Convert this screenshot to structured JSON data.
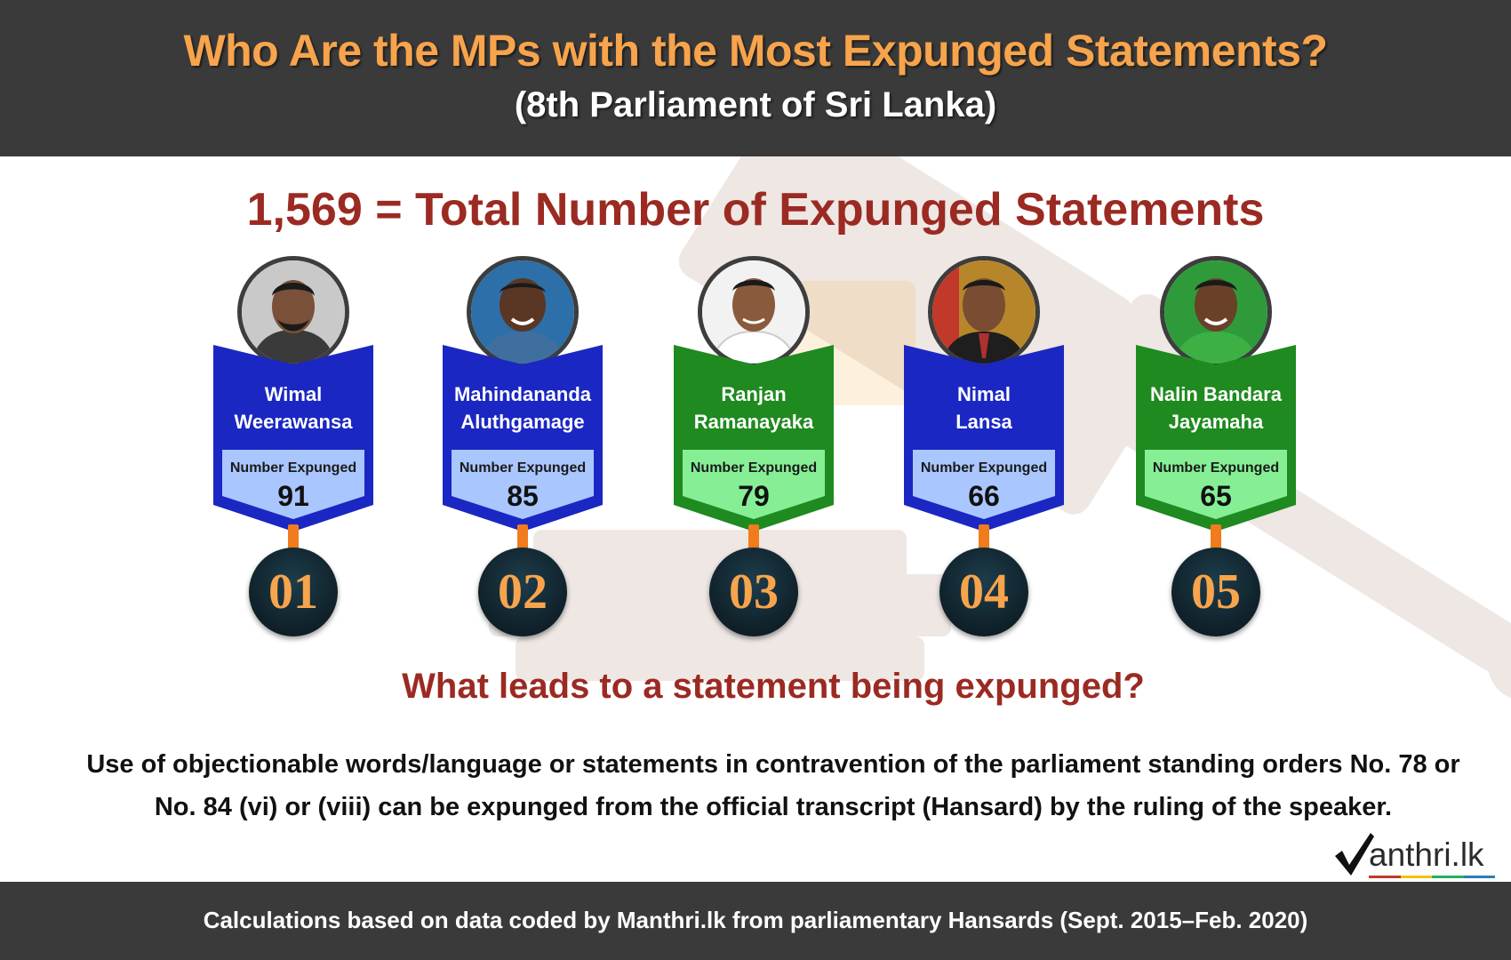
{
  "header": {
    "title": "Who Are the MPs with the Most Expunged Statements?",
    "subtitle": "(8th Parliament of Sri Lanka)"
  },
  "total_line": "1,569 = Total Number of Expunged Statements",
  "total_value": 1569,
  "mps": [
    {
      "rank": "01",
      "name_line1": "Wimal",
      "name_line2": "Weerawansa",
      "label": "Number Expunged",
      "value": "91",
      "ribbon_color": "#1b27c2",
      "box_color": "#a9c6ff"
    },
    {
      "rank": "02",
      "name_line1": "Mahindananda",
      "name_line2": "Aluthgamage",
      "label": "Number Expunged",
      "value": "85",
      "ribbon_color": "#1b27c2",
      "box_color": "#a9c6ff"
    },
    {
      "rank": "03",
      "name_line1": "Ranjan",
      "name_line2": "Ramanayaka",
      "label": "Number Expunged",
      "value": "79",
      "ribbon_color": "#1f8a1f",
      "box_color": "#86ef95"
    },
    {
      "rank": "04",
      "name_line1": "Nimal",
      "name_line2": "Lansa",
      "label": "Number Expunged",
      "value": "66",
      "ribbon_color": "#1b27c2",
      "box_color": "#a9c6ff"
    },
    {
      "rank": "05",
      "name_line1": "Nalin Bandara",
      "name_line2": "Jayamaha",
      "label": "Number Expunged",
      "value": "65",
      "ribbon_color": "#1f8a1f",
      "box_color": "#86ef95"
    }
  ],
  "question": "What leads to a statement being expunged?",
  "explanation": "Use of objectionable words/language or statements in contravention of the parliament standing orders No. 78 or No. 84 (vi) or (viii) can be expunged from the official transcript (Hansard) by the ruling of the speaker.",
  "logo": {
    "text": "anthri.lk",
    "icon": "checkmark-logo-icon"
  },
  "footer": "Calculations based on data coded by Manthri.lk from parliamentary Hansards (Sept. 2015–Feb. 2020)",
  "colors": {
    "header_bg": "#3a3a3a",
    "title": "#f7a44c",
    "accent_red": "#9b2a22",
    "ribbon_blue": "#1b27c2",
    "ribbon_green": "#1f8a1f",
    "stem_orange": "#f07c1e"
  }
}
